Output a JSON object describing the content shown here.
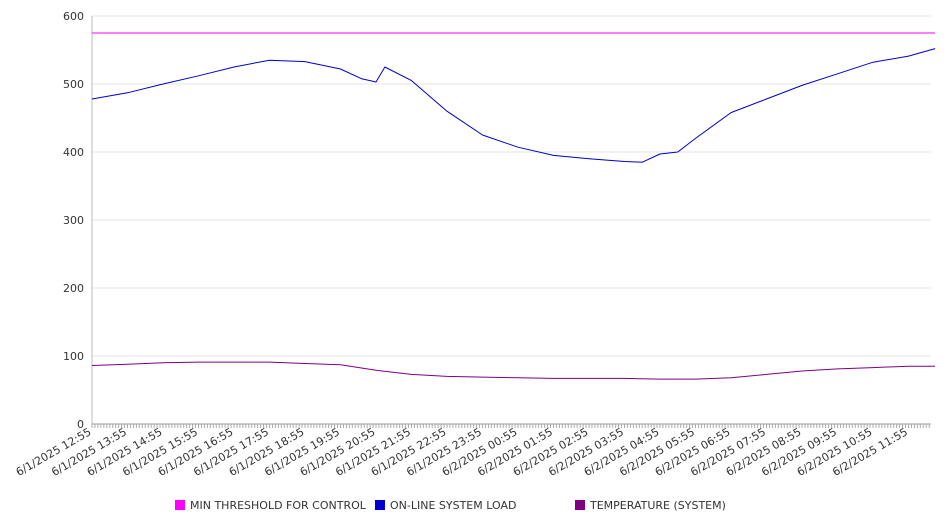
{
  "chart_data": {
    "type": "line",
    "y_ticks": [
      0,
      100,
      200,
      300,
      400,
      500,
      600
    ],
    "ylim": [
      0,
      600
    ],
    "x_tick_labels": [
      "6/1/2025 12:55",
      "6/1/2025 13:55",
      "6/1/2025 14:55",
      "6/1/2025 15:55",
      "6/1/2025 16:55",
      "6/1/2025 17:55",
      "6/1/2025 18:55",
      "6/1/2025 19:55",
      "6/1/2025 20:55",
      "6/1/2025 21:55",
      "6/1/2025 22:55",
      "6/1/2025 23:55",
      "6/2/2025 00:55",
      "6/2/2025 01:55",
      "6/2/2025 02:55",
      "6/2/2025 03:55",
      "6/2/2025 04:55",
      "6/2/2025 05:55",
      "6/2/2025 06:55",
      "6/2/2025 07:55",
      "6/2/2025 08:55",
      "6/2/2025 09:55",
      "6/2/2025 10:55",
      "6/2/2025 11:55"
    ],
    "grid": true,
    "legend_position": "bottom",
    "series": [
      {
        "name": "MIN THRESHOLD FOR CONTROL",
        "color": "#ff00ff",
        "x": [
          "6/1/2025 12:55",
          "6/2/2025 12:40"
        ],
        "values": [
          575,
          575
        ]
      },
      {
        "name": "ON-LINE SYSTEM LOAD",
        "color": "#0000cc",
        "x": [
          "6/1/2025 12:55",
          "6/1/2025 13:55",
          "6/1/2025 14:55",
          "6/1/2025 15:55",
          "6/1/2025 16:55",
          "6/1/2025 17:55",
          "6/1/2025 18:55",
          "6/1/2025 19:55",
          "6/1/2025 20:30",
          "6/1/2025 20:55",
          "6/1/2025 21:10",
          "6/1/2025 21:55",
          "6/1/2025 22:55",
          "6/1/2025 23:55",
          "6/2/2025 00:55",
          "6/2/2025 01:55",
          "6/2/2025 02:55",
          "6/2/2025 03:55",
          "6/2/2025 04:25",
          "6/2/2025 04:55",
          "6/2/2025 05:25",
          "6/2/2025 05:55",
          "6/2/2025 06:55",
          "6/2/2025 07:55",
          "6/2/2025 08:55",
          "6/2/2025 09:55",
          "6/2/2025 10:55",
          "6/2/2025 11:55",
          "6/2/2025 12:40"
        ],
        "values": [
          478,
          487,
          500,
          512,
          525,
          535,
          533,
          522,
          508,
          503,
          525,
          505,
          460,
          425,
          407,
          395,
          390,
          386,
          385,
          397,
          400,
          420,
          458,
          478,
          498,
          515,
          532,
          541,
          552
        ]
      },
      {
        "name": "TEMPERATURE (SYSTEM)",
        "color": "#800080",
        "x": [
          "6/1/2025 12:55",
          "6/1/2025 13:55",
          "6/1/2025 14:55",
          "6/1/2025 15:55",
          "6/1/2025 16:55",
          "6/1/2025 17:55",
          "6/1/2025 18:55",
          "6/1/2025 19:55",
          "6/1/2025 20:55",
          "6/1/2025 21:55",
          "6/1/2025 22:55",
          "6/1/2025 23:55",
          "6/2/2025 00:55",
          "6/2/2025 01:55",
          "6/2/2025 02:55",
          "6/2/2025 03:55",
          "6/2/2025 04:55",
          "6/2/2025 05:55",
          "6/2/2025 06:55",
          "6/2/2025 07:55",
          "6/2/2025 08:55",
          "6/2/2025 09:55",
          "6/2/2025 10:55",
          "6/2/2025 11:55",
          "6/2/2025 12:40"
        ],
        "values": [
          86,
          88,
          90,
          91,
          91,
          91,
          89,
          87,
          79,
          73,
          70,
          69,
          68,
          67,
          67,
          67,
          66,
          66,
          68,
          73,
          78,
          81,
          83,
          85,
          85
        ]
      }
    ]
  }
}
